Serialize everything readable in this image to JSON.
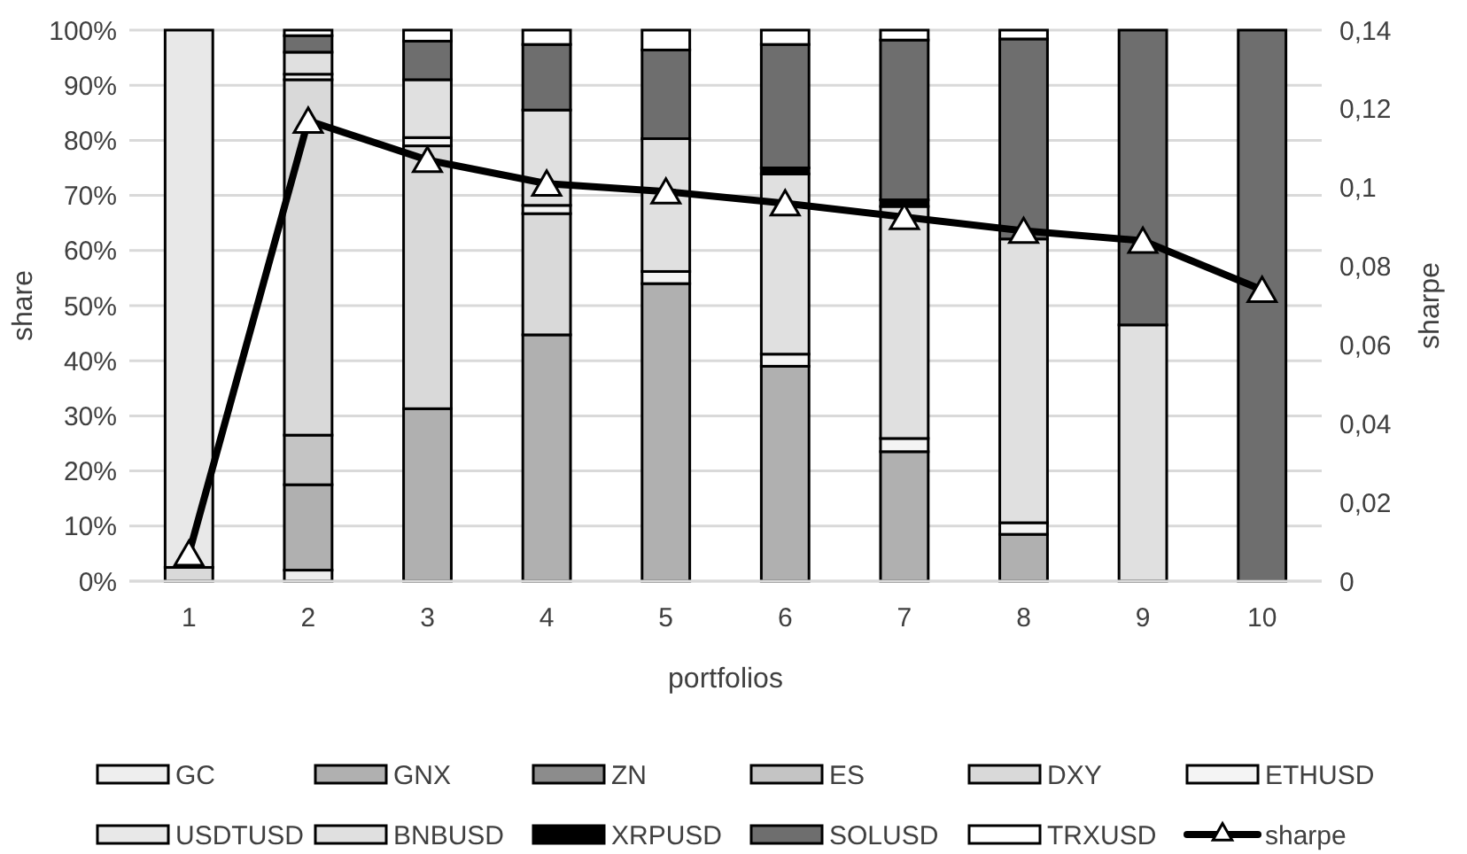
{
  "chart_data": {
    "type": "bar",
    "stacked": true,
    "xlabel": "portfolios",
    "ylabel": "share",
    "y2label": "sharpe",
    "categories": [
      "1",
      "2",
      "3",
      "4",
      "5",
      "6",
      "7",
      "8",
      "9",
      "10"
    ],
    "ylim": [
      0,
      100
    ],
    "yticks": [
      {
        "value": 0,
        "label": "0%"
      },
      {
        "value": 10,
        "label": "10%"
      },
      {
        "value": 20,
        "label": "20%"
      },
      {
        "value": 30,
        "label": "30%"
      },
      {
        "value": 40,
        "label": "40%"
      },
      {
        "value": 50,
        "label": "50%"
      },
      {
        "value": 60,
        "label": "60%"
      },
      {
        "value": 70,
        "label": "70%"
      },
      {
        "value": 80,
        "label": "80%"
      },
      {
        "value": 90,
        "label": "90%"
      },
      {
        "value": 100,
        "label": "100%"
      }
    ],
    "y2lim": [
      0,
      0.14
    ],
    "y2ticks": [
      0,
      {
        "value": 0.02,
        "label": "0,02"
      },
      {
        "value": 0.04,
        "label": "0,04"
      },
      {
        "value": 0.06,
        "label": "0,06"
      },
      {
        "value": 0.08,
        "label": "0,08"
      },
      {
        "value": 0.1,
        "label": "0,1"
      },
      {
        "value": 0.12,
        "label": "0,12"
      },
      {
        "value": 0.14,
        "label": "0,14"
      }
    ],
    "grid": "y",
    "legend": "bottom",
    "series": [
      {
        "name": "GC",
        "color": "#eeeeee",
        "values": [
          0,
          2,
          0,
          0,
          0,
          0,
          0,
          0,
          0,
          0
        ]
      },
      {
        "name": "GNX",
        "color": "#b0b0b0",
        "values": [
          0,
          15.5,
          31.3,
          44.7,
          54,
          39,
          23.5,
          8.5,
          0,
          0
        ]
      },
      {
        "name": "ZN",
        "color": "#8c8c8c",
        "values": [
          0,
          0,
          0,
          0,
          0,
          0,
          0,
          0,
          0,
          0
        ]
      },
      {
        "name": "ES",
        "color": "#c4c4c4",
        "values": [
          0,
          9,
          0,
          0,
          0,
          0,
          0,
          0,
          0,
          0
        ]
      },
      {
        "name": "DXY",
        "color": "#d9d9d9",
        "values": [
          2.5,
          64.5,
          47.7,
          22,
          0,
          0,
          0,
          0,
          0,
          0
        ]
      },
      {
        "name": "ETHUSD",
        "color": "#f4f4f4",
        "values": [
          0,
          1,
          1.5,
          1.5,
          2.2,
          2.2,
          2.4,
          2.1,
          0,
          0
        ]
      },
      {
        "name": "USDTUSD",
        "color": "#e8e8e8",
        "values": [
          97.5,
          0,
          0,
          0,
          0,
          0,
          0,
          0,
          0,
          0
        ]
      },
      {
        "name": "BNBUSD",
        "color": "#e0e0e0",
        "values": [
          0,
          4,
          10.5,
          17.3,
          24.1,
          32.7,
          42.1,
          51.5,
          46.5,
          0
        ]
      },
      {
        "name": "XRPUSD",
        "color": "#000000",
        "values": [
          0,
          0,
          0,
          0,
          0,
          1.1,
          1.2,
          null,
          0,
          0
        ]
      },
      {
        "name": "SOLUSD",
        "color": "#6e6e6e",
        "values": [
          0,
          3,
          7,
          11.9,
          16.1,
          22.4,
          29,
          36.3,
          53.5,
          100
        ]
      },
      {
        "name": "TRXUSD",
        "color": "#ffffff",
        "values": [
          0,
          1,
          2,
          2.6,
          3.6,
          2.6,
          1.8,
          1.6,
          0,
          0
        ]
      },
      {
        "name": "sharpe",
        "type": "line",
        "axis": "y2",
        "color": "#000000",
        "marker": "triangle",
        "values": [
          0.007,
          0.117,
          0.107,
          0.101,
          0.099,
          0.096,
          0.0925,
          0.089,
          0.0865,
          0.074
        ]
      }
    ]
  }
}
